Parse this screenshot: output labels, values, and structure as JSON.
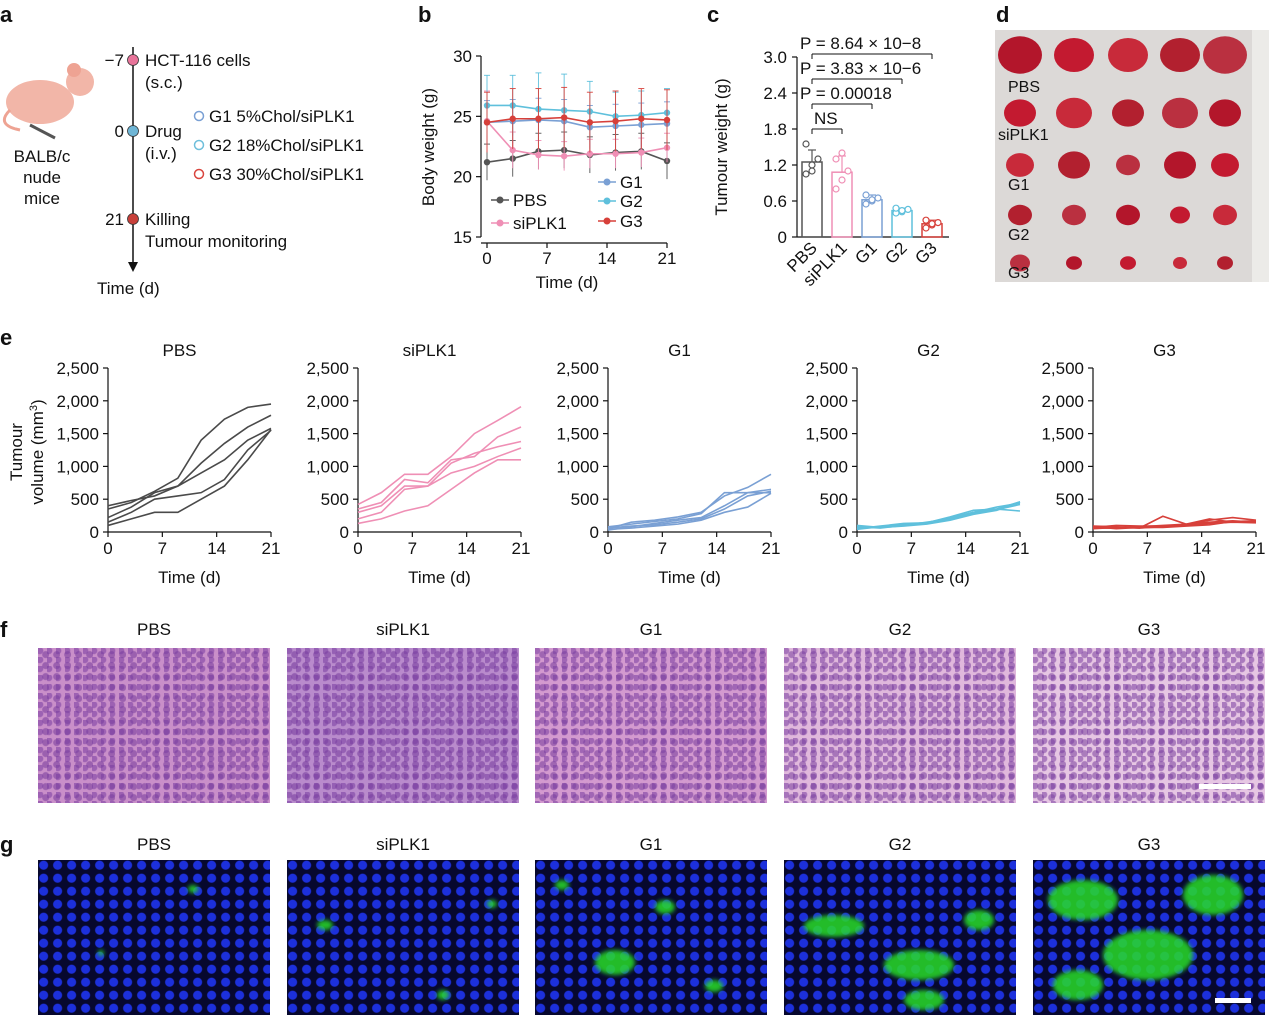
{
  "panel_letters": {
    "a": "a",
    "b": "b",
    "c": "c",
    "d": "d",
    "e": "e",
    "f": "f",
    "g": "g"
  },
  "panel_a": {
    "animal": [
      "BALB/c",
      "nude",
      "mice"
    ],
    "timeline": [
      {
        "day": "−7",
        "text": [
          "HCT-116 cells",
          "(s.c.)"
        ],
        "color": "#e8749a"
      },
      {
        "day": "0",
        "text": [
          "Drug",
          "(i.v.)"
        ],
        "color": "#6fb6d6"
      },
      {
        "day": "21",
        "text": [
          "Killing",
          "Tumour monitoring"
        ],
        "color": "#c8403a"
      }
    ],
    "groups": [
      {
        "label": "G1 5%Chol/siPLK1",
        "color": "#7aa0d4"
      },
      {
        "label": "G2 18%Chol/siPLK1",
        "color": "#6fbfdb"
      },
      {
        "label": "G3 30%Chol/siPLK1",
        "color": "#d9453e"
      }
    ],
    "axis_label": "Time (d)"
  },
  "panel_d": {
    "labels": [
      "PBS",
      "siPLK1",
      "G1",
      "G2",
      "G3"
    ]
  },
  "panel_f": {
    "titles": [
      "PBS",
      "siPLK1",
      "G1",
      "G2",
      "G3"
    ]
  },
  "panel_g": {
    "titles": [
      "PBS",
      "siPLK1",
      "G1",
      "G2",
      "G3"
    ],
    "green_level": [
      0.1,
      0.2,
      0.45,
      0.7,
      1.0
    ]
  },
  "chart_data": [
    {
      "id": "b",
      "type": "line",
      "title": "",
      "xlabel": "Time (d)",
      "ylabel": "Body weight (g)",
      "xlim": [
        0,
        21
      ],
      "ylim": [
        15,
        30
      ],
      "xticks": [
        0,
        7,
        14,
        21
      ],
      "yticks": [
        15,
        20,
        25,
        30
      ],
      "x": [
        0,
        3,
        6,
        9,
        12,
        15,
        18,
        21
      ],
      "series": [
        {
          "name": "PBS",
          "color": "#555555",
          "values": [
            21.2,
            21.5,
            22.1,
            22.2,
            21.8,
            22.0,
            22.1,
            21.3
          ],
          "err": [
            1.5,
            1.5,
            1.5,
            1.5,
            1.5,
            1.5,
            1.5,
            1.5
          ]
        },
        {
          "name": "siPLK1",
          "color": "#ef8fb5",
          "values": [
            24.6,
            22.2,
            21.8,
            21.7,
            21.9,
            21.9,
            22.0,
            22.4
          ],
          "err": [
            2.5,
            1.5,
            1.2,
            1.2,
            1.2,
            1.2,
            1.2,
            1.2
          ]
        },
        {
          "name": "G1",
          "color": "#7aa0d4",
          "values": [
            24.5,
            24.6,
            24.7,
            24.6,
            24.1,
            24.2,
            24.3,
            24.4
          ],
          "err": [
            1.8,
            1.8,
            1.8,
            1.8,
            1.8,
            1.8,
            1.8,
            1.8
          ]
        },
        {
          "name": "G2",
          "color": "#5fc0dc",
          "values": [
            25.9,
            25.9,
            25.6,
            25.5,
            25.4,
            25.0,
            25.1,
            25.3
          ],
          "err": [
            2.5,
            2.5,
            3.0,
            3.0,
            2.5,
            2.0,
            2.0,
            2.0
          ]
        },
        {
          "name": "G3",
          "color": "#d7403a",
          "values": [
            24.5,
            24.8,
            24.8,
            24.9,
            24.5,
            24.6,
            24.8,
            24.7
          ],
          "err": [
            2.5,
            2.5,
            2.5,
            2.5,
            2.5,
            2.5,
            2.5,
            2.5
          ]
        }
      ],
      "legend": [
        "PBS",
        "siPLK1",
        "G1",
        "G2",
        "G3"
      ]
    },
    {
      "id": "c",
      "type": "bar",
      "xlabel": "",
      "ylabel": "Tumour weight (g)",
      "ylim": [
        0,
        3.0
      ],
      "yticks": [
        "0",
        "0.6",
        "1.2",
        "1.8",
        "2.4",
        "3.0"
      ],
      "categories": [
        "PBS",
        "siPLK1",
        "G1",
        "G2",
        "G3"
      ],
      "colors": [
        "#555555",
        "#ef8fb5",
        "#7aa0d4",
        "#5fc0dc",
        "#d7403a"
      ],
      "values": [
        1.25,
        1.08,
        0.62,
        0.44,
        0.22
      ],
      "err": [
        0.2,
        0.27,
        0.08,
        0.04,
        0.06
      ],
      "points": [
        [
          1.05,
          1.2,
          1.3,
          1.55,
          1.1
        ],
        [
          0.8,
          0.95,
          1.1,
          1.3,
          1.4
        ],
        [
          0.55,
          0.6,
          0.65,
          0.7,
          0.62
        ],
        [
          0.4,
          0.42,
          0.46,
          0.48,
          0.44
        ],
        [
          0.15,
          0.2,
          0.24,
          0.28,
          0.22
        ]
      ],
      "annotations": [
        {
          "from": 0,
          "to": 1,
          "text": "NS"
        },
        {
          "from": 0,
          "to": 2,
          "text": "P = 0.00018"
        },
        {
          "from": 0,
          "to": 3,
          "text": "P = 3.83 × 10−6"
        },
        {
          "from": 0,
          "to": 4,
          "text": "P = 8.64 × 10−8"
        }
      ]
    },
    {
      "id": "e",
      "type": "line",
      "xlabel": "Time (d)",
      "ylabel": "Tumour volume (mm3)",
      "ylabel_parts": [
        "Tumour",
        "volume (mm",
        "3",
        ")"
      ],
      "xlim": [
        0,
        21
      ],
      "ylim": [
        0,
        2500
      ],
      "xticks": [
        "0",
        "7",
        "14",
        "21"
      ],
      "yticks": [
        "0",
        "500",
        "1,000",
        "1,500",
        "2,000",
        "2,500"
      ],
      "x": [
        0,
        3,
        6,
        9,
        12,
        15,
        18,
        21
      ],
      "panels": [
        {
          "title": "PBS",
          "color": "#4a4a4a",
          "series": [
            [
              350,
              450,
              620,
              820,
              1400,
              1720,
              1900,
              1950
            ],
            [
              400,
              480,
              550,
              700,
              1050,
              1350,
              1600,
              1780
            ],
            [
              220,
              380,
              600,
              700,
              900,
              1100,
              1400,
              1580
            ],
            [
              150,
              300,
              500,
              550,
              600,
              800,
              1250,
              1550
            ],
            [
              100,
              200,
              300,
              300,
              500,
              700,
              1100,
              1560
            ]
          ]
        },
        {
          "title": "siPLK1",
          "color": "#ef8fb5",
          "series": [
            [
              420,
              600,
              880,
              880,
              1150,
              1500,
              1700,
              1910
            ],
            [
              350,
              450,
              800,
              750,
              1100,
              1150,
              1450,
              1600
            ],
            [
              300,
              400,
              700,
              700,
              1050,
              1200,
              1300,
              1380
            ],
            [
              200,
              300,
              650,
              700,
              900,
              1000,
              1150,
              1280
            ],
            [
              130,
              200,
              320,
              400,
              650,
              900,
              1100,
              1100
            ]
          ]
        },
        {
          "title": "G1",
          "color": "#7aa0d4",
          "series": [
            [
              50,
              150,
              180,
              230,
              300,
              550,
              680,
              880
            ],
            [
              80,
              120,
              160,
              200,
              280,
              600,
              600,
              650
            ],
            [
              30,
              80,
              130,
              180,
              220,
              400,
              600,
              600
            ],
            [
              60,
              90,
              110,
              150,
              200,
              350,
              550,
              620
            ],
            [
              40,
              60,
              90,
              120,
              180,
              300,
              380,
              590
            ]
          ]
        },
        {
          "title": "G2",
          "color": "#5fc0dc",
          "series": [
            [
              80,
              60,
              100,
              150,
              200,
              300,
              380,
              440
            ],
            [
              50,
              90,
              130,
              140,
              220,
              300,
              340,
              420
            ],
            [
              100,
              70,
              120,
              140,
              230,
              330,
              350,
              320
            ],
            [
              40,
              80,
              110,
              130,
              200,
              280,
              350,
              460
            ],
            [
              60,
              70,
              90,
              120,
              180,
              270,
              330,
              460
            ]
          ]
        },
        {
          "title": "G3",
          "color": "#d7403a",
          "series": [
            [
              90,
              80,
              60,
              240,
              120,
              200,
              150,
              160
            ],
            [
              70,
              100,
              90,
              90,
              110,
              180,
              220,
              180
            ],
            [
              60,
              60,
              80,
              100,
              120,
              150,
              170,
              150
            ],
            [
              50,
              70,
              60,
              80,
              100,
              130,
              150,
              140
            ],
            [
              80,
              50,
              70,
              70,
              90,
              110,
              160,
              170
            ]
          ]
        }
      ]
    }
  ]
}
